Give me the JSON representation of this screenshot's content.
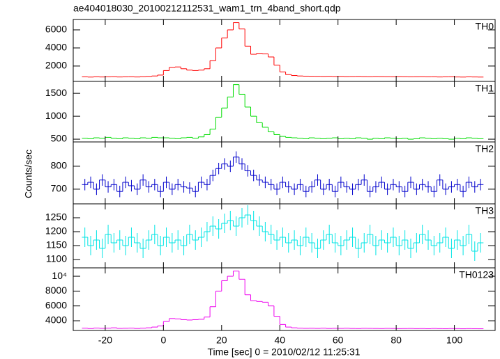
{
  "chart_data": {
    "type": "histogram",
    "title": "ae404018030_20100212112531_wam1_trn_4band_short.qdp",
    "x_label": "Time [sec] 0 = 2010/02/12 11:25:31",
    "y_label": "Counts/sec",
    "xlim": [
      -31,
      114
    ],
    "xticks": [
      -20,
      0,
      20,
      40,
      60,
      80,
      100
    ],
    "bins": [
      -28,
      -26,
      -24,
      -22,
      -20,
      -18,
      -16,
      -14,
      -12,
      -10,
      -8,
      -6,
      -4,
      -2,
      0,
      2,
      4,
      6,
      8,
      10,
      12,
      14,
      16,
      18,
      20,
      22,
      24,
      26,
      28,
      30,
      32,
      34,
      36,
      38,
      40,
      42,
      44,
      46,
      48,
      50,
      52,
      54,
      56,
      58,
      60,
      62,
      64,
      66,
      68,
      70,
      72,
      74,
      76,
      78,
      80,
      82,
      84,
      86,
      88,
      90,
      92,
      94,
      96,
      98,
      100,
      102,
      104,
      106,
      108,
      110
    ],
    "panels": [
      {
        "name": "TH0",
        "color": "#ff0000",
        "ylim": [
          300,
          7150
        ],
        "yticks": [
          2000,
          4000,
          6000
        ],
        "values": [
          800,
          780,
          810,
          790,
          800,
          820,
          790,
          800,
          810,
          790,
          820,
          850,
          900,
          1000,
          1500,
          1850,
          1900,
          1700,
          1550,
          1500,
          1550,
          1700,
          2600,
          4000,
          5100,
          6000,
          6800,
          6100,
          4200,
          3300,
          3400,
          3350,
          3000,
          2100,
          1350,
          1050,
          950,
          900,
          880,
          870,
          860,
          850,
          860,
          840,
          850,
          830,
          840,
          850,
          830,
          820,
          840,
          830,
          820,
          810,
          830,
          820,
          800,
          810,
          820,
          800,
          810,
          790,
          800,
          810,
          790,
          780,
          800,
          790,
          780
        ]
      },
      {
        "name": "TH1",
        "color": "#00dd00",
        "ylim": [
          440,
          1760
        ],
        "yticks": [
          500,
          1000,
          1500
        ],
        "values": [
          520,
          510,
          530,
          520,
          540,
          520,
          510,
          530,
          520,
          510,
          530,
          520,
          540,
          530,
          530,
          520,
          510,
          530,
          540,
          520,
          550,
          600,
          720,
          980,
          1180,
          1420,
          1690,
          1480,
          1200,
          1000,
          860,
          760,
          660,
          600,
          560,
          540,
          530,
          520,
          510,
          530,
          520,
          510,
          520,
          530,
          510,
          520,
          510,
          530,
          520,
          500,
          520,
          510,
          530,
          520,
          510,
          520,
          500,
          510,
          530,
          520,
          510,
          520,
          510,
          500,
          520,
          510,
          530,
          520,
          510
        ]
      },
      {
        "name": "TH2",
        "color": "#0000cc",
        "ylim": [
          636,
          906
        ],
        "yticks": [
          700,
          800
        ],
        "error": 25,
        "values": [
          720,
          730,
          700,
          740,
          710,
          720,
          690,
          730,
          715,
          700,
          740,
          710,
          720,
          690,
          730,
          700,
          720,
          710,
          705,
          690,
          730,
          720,
          760,
          790,
          810,
          800,
          840,
          810,
          780,
          760,
          740,
          730,
          720,
          700,
          730,
          710,
          700,
          720,
          690,
          710,
          740,
          700,
          720,
          690,
          730,
          710,
          700,
          720,
          740,
          690,
          710,
          730,
          700,
          720,
          710,
          690,
          730,
          700,
          720,
          710,
          690,
          740,
          700,
          710,
          720,
          690,
          730,
          710,
          720
        ]
      },
      {
        "name": "TH3",
        "color": "#00e5e5",
        "ylim": [
          1070,
          1300
        ],
        "yticks": [
          1100,
          1150,
          1200,
          1250
        ],
        "error": 35,
        "values": [
          1180,
          1150,
          1170,
          1140,
          1190,
          1160,
          1170,
          1150,
          1180,
          1160,
          1140,
          1170,
          1190,
          1150,
          1180,
          1160,
          1170,
          1150,
          1190,
          1170,
          1180,
          1200,
          1220,
          1210,
          1230,
          1240,
          1220,
          1250,
          1260,
          1240,
          1220,
          1200,
          1190,
          1170,
          1180,
          1160,
          1170,
          1150,
          1180,
          1160,
          1140,
          1170,
          1190,
          1160,
          1150,
          1170,
          1180,
          1140,
          1160,
          1190,
          1150,
          1170,
          1160,
          1180,
          1150,
          1170,
          1140,
          1160,
          1190,
          1170,
          1150,
          1160,
          1180,
          1140,
          1170,
          1150,
          1190,
          1130,
          1160
        ]
      },
      {
        "name": "TH0123",
        "color": "#ee00ee",
        "ylim": [
          2690,
          11130
        ],
        "yticks": [
          4000,
          6000,
          8000,
          {
            "value": 10000,
            "label": "10⁴"
          }
        ],
        "values": [
          3000,
          2950,
          3020,
          2980,
          3000,
          3050,
          2970,
          2990,
          3010,
          2960,
          3000,
          3050,
          3150,
          3300,
          3900,
          4300,
          4250,
          4150,
          4100,
          4150,
          4200,
          4500,
          5900,
          8000,
          9400,
          10000,
          10700,
          9600,
          7500,
          6700,
          6600,
          6500,
          6000,
          4600,
          3500,
          3150,
          3050,
          3000,
          2980,
          2990,
          2970,
          3000,
          2960,
          2980,
          2970,
          2990,
          2960,
          2950,
          2980,
          2970,
          2960,
          2950,
          2970,
          2960,
          2940,
          2950,
          2960,
          2940,
          2950,
          2930,
          2960,
          2940,
          2930,
          2950,
          2940,
          2920,
          2940,
          2930,
          2920
        ]
      }
    ]
  }
}
